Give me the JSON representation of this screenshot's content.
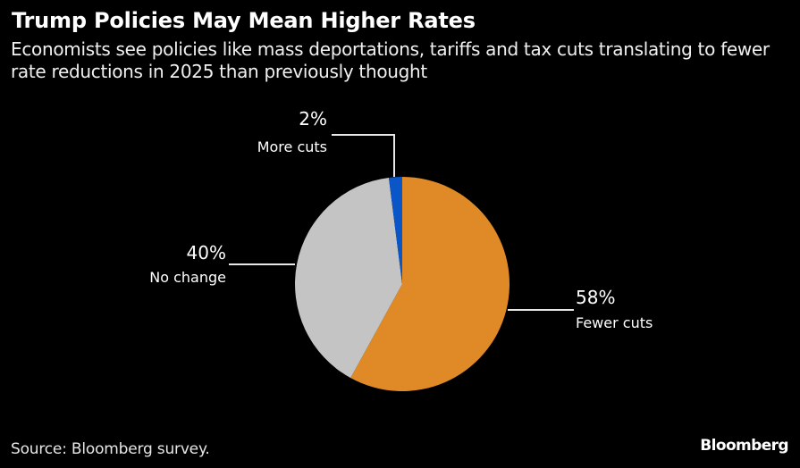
{
  "header": {
    "title": "Trump Policies May Mean Higher Rates",
    "subtitle": "Economists see policies like mass deportations, tariffs and tax cuts translating to fewer rate reductions in 2025 than previously thought"
  },
  "footer": {
    "source": "Source: Bloomberg survey.",
    "brand": "Bloomberg"
  },
  "chart_data": {
    "type": "pie",
    "title": "Trump Policies May Mean Higher Rates",
    "subtitle": "Economists see policies like mass deportations, tariffs and tax cuts translating to fewer rate reductions in 2025 than previously thought",
    "start": "12 o'clock, clockwise",
    "slices": [
      {
        "label": "Fewer cuts",
        "value": 58,
        "display": "58%",
        "color": "#df8a26"
      },
      {
        "label": "No change",
        "value": 40,
        "display": "40%",
        "color": "#c4c4c4"
      },
      {
        "label": "More cuts",
        "value": 2,
        "display": "2%",
        "color": "#0a55c8"
      }
    ],
    "legend": "none (direct labels with leader lines)"
  }
}
